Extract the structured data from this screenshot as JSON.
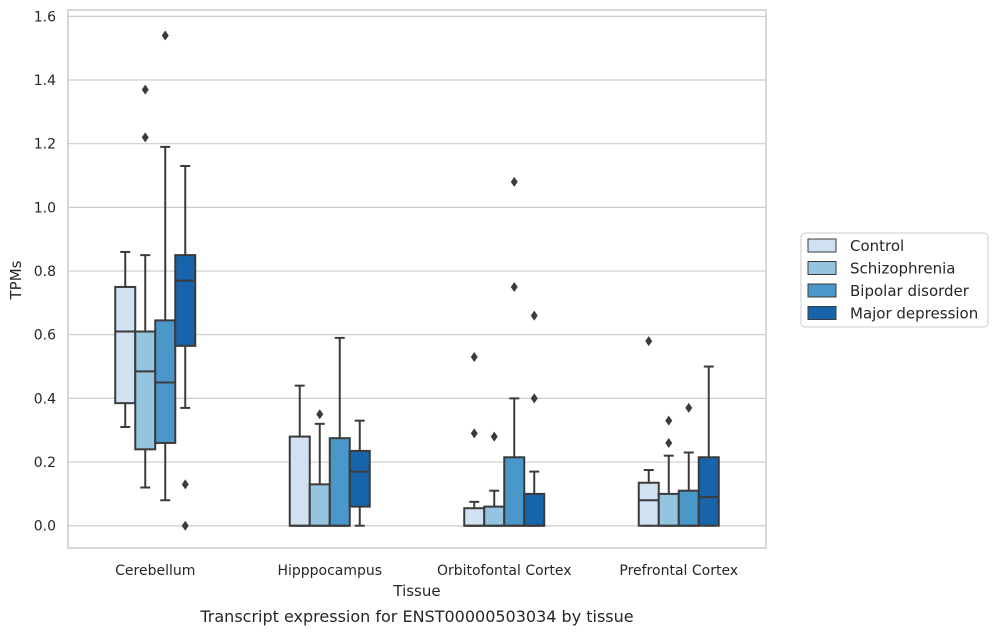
{
  "chart_data": {
    "type": "box",
    "title": "",
    "caption": "Transcript expression for ENST00000503034 by tissue",
    "xlabel": "Tissue",
    "ylabel": "TPMs",
    "ylim": [
      -0.07,
      1.62
    ],
    "yticks": [
      0.0,
      0.2,
      0.4,
      0.6,
      0.8,
      1.0,
      1.2,
      1.4,
      1.6
    ],
    "ytick_labels": [
      "0.0",
      "0.2",
      "0.4",
      "0.6",
      "0.8",
      "1.0",
      "1.2",
      "1.4",
      "1.6"
    ],
    "grid": "horizontal",
    "legend_position": "right, outside plot",
    "categories": [
      "Cerebellum",
      "Hipppocampus",
      "Orbitofontal Cortex",
      "Prefrontal Cortex"
    ],
    "series": [
      {
        "name": "Control",
        "color": "#d0e1f2",
        "boxes": [
          {
            "whislo": 0.31,
            "q1": 0.385,
            "med": 0.61,
            "q3": 0.75,
            "whishi": 0.86,
            "fliers": []
          },
          {
            "whislo": 0.0,
            "q1": 0.0,
            "med": 0.0,
            "q3": 0.28,
            "whishi": 0.44,
            "fliers": []
          },
          {
            "whislo": 0.0,
            "q1": 0.0,
            "med": 0.0,
            "q3": 0.055,
            "whishi": 0.075,
            "fliers": [
              0.53,
              0.29
            ]
          },
          {
            "whislo": 0.0,
            "q1": 0.0,
            "med": 0.08,
            "q3": 0.135,
            "whishi": 0.175,
            "fliers": [
              0.58
            ]
          }
        ]
      },
      {
        "name": "Schizophrenia",
        "color": "#94c4df",
        "boxes": [
          {
            "whislo": 0.12,
            "q1": 0.24,
            "med": 0.485,
            "q3": 0.61,
            "whishi": 0.85,
            "fliers": [
              1.37,
              1.22
            ]
          },
          {
            "whislo": 0.0,
            "q1": 0.0,
            "med": 0.0,
            "q3": 0.13,
            "whishi": 0.32,
            "fliers": [
              0.35
            ]
          },
          {
            "whislo": 0.0,
            "q1": 0.0,
            "med": 0.0,
            "q3": 0.06,
            "whishi": 0.11,
            "fliers": [
              0.28
            ]
          },
          {
            "whislo": 0.0,
            "q1": 0.0,
            "med": 0.0,
            "q3": 0.1,
            "whishi": 0.22,
            "fliers": [
              0.33,
              0.26
            ]
          }
        ]
      },
      {
        "name": "Bipolar disorder",
        "color": "#4a98c9",
        "boxes": [
          {
            "whislo": 0.08,
            "q1": 0.26,
            "med": 0.45,
            "q3": 0.645,
            "whishi": 1.19,
            "fliers": [
              1.54
            ]
          },
          {
            "whislo": 0.0,
            "q1": 0.0,
            "med": 0.0,
            "q3": 0.275,
            "whishi": 0.59,
            "fliers": []
          },
          {
            "whislo": 0.0,
            "q1": 0.0,
            "med": 0.0,
            "q3": 0.215,
            "whishi": 0.4,
            "fliers": [
              1.08,
              0.75
            ]
          },
          {
            "whislo": 0.0,
            "q1": 0.0,
            "med": 0.0,
            "q3": 0.11,
            "whishi": 0.23,
            "fliers": [
              0.37
            ]
          }
        ]
      },
      {
        "name": "Major depression",
        "color": "#1764ab",
        "boxes": [
          {
            "whislo": 0.37,
            "q1": 0.565,
            "med": 0.77,
            "q3": 0.85,
            "whishi": 1.13,
            "fliers": [
              0.13,
              0.0
            ]
          },
          {
            "whislo": 0.0,
            "q1": 0.06,
            "med": 0.17,
            "q3": 0.235,
            "whishi": 0.33,
            "fliers": []
          },
          {
            "whislo": 0.0,
            "q1": 0.0,
            "med": 0.0,
            "q3": 0.1,
            "whishi": 0.17,
            "fliers": [
              0.66,
              0.4
            ]
          },
          {
            "whislo": 0.0,
            "q1": 0.0,
            "med": 0.09,
            "q3": 0.215,
            "whishi": 0.5,
            "fliers": []
          }
        ]
      }
    ],
    "colors": {
      "box_edge": "#3b3b3b",
      "grid": "#cccccc",
      "frame": "#cccccc",
      "text": "#262626"
    }
  }
}
